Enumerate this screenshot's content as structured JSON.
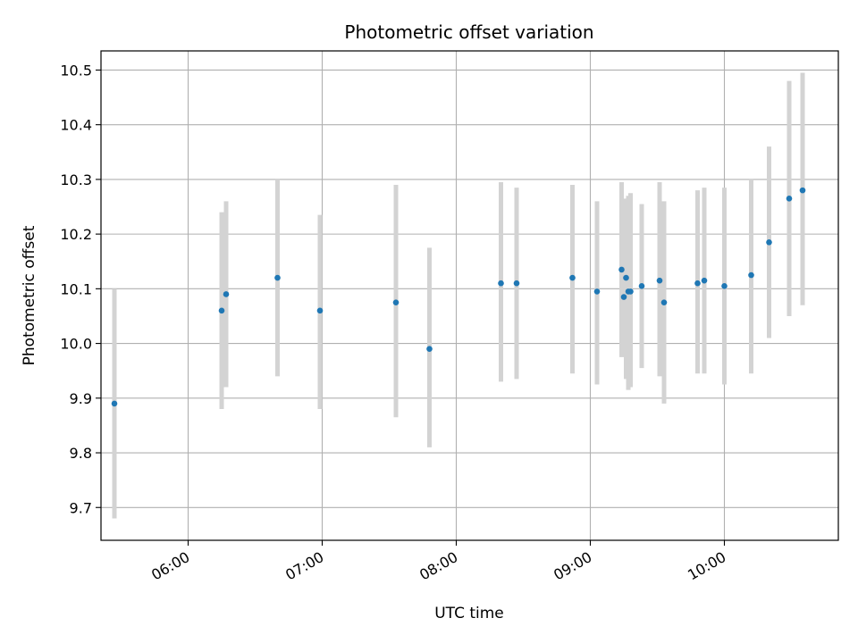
{
  "chart_data": {
    "type": "scatter",
    "title": "Photometric offset variation",
    "xlabel": "UTC time",
    "ylabel": "Photometric offset",
    "x_unit": "UTC hour of day",
    "xlim": [
      "05:21",
      "10:51"
    ],
    "ylim": [
      9.64,
      10.535
    ],
    "x_ticks": [
      "06:00",
      "07:00",
      "08:00",
      "09:00",
      "10:00"
    ],
    "y_ticks": [
      "9.7",
      "9.8",
      "9.9",
      "10.0",
      "10.1",
      "10.2",
      "10.3",
      "10.4",
      "10.5"
    ],
    "grid": true,
    "marker_color": "#1f77b4",
    "errorbar_color": "#d3d3d3",
    "points": [
      {
        "time": "05:27",
        "y": 9.89,
        "err_low": 9.68,
        "err_high": 10.1
      },
      {
        "time": "06:15",
        "y": 10.06,
        "err_low": 9.88,
        "err_high": 10.24
      },
      {
        "time": "06:17",
        "y": 10.09,
        "err_low": 9.92,
        "err_high": 10.26
      },
      {
        "time": "06:40",
        "y": 10.12,
        "err_low": 9.94,
        "err_high": 10.3
      },
      {
        "time": "06:59",
        "y": 10.06,
        "err_low": 9.88,
        "err_high": 10.235
      },
      {
        "time": "07:33",
        "y": 10.075,
        "err_low": 9.865,
        "err_high": 10.29
      },
      {
        "time": "07:48",
        "y": 9.99,
        "err_low": 9.81,
        "err_high": 10.175
      },
      {
        "time": "08:20",
        "y": 10.11,
        "err_low": 9.93,
        "err_high": 10.295
      },
      {
        "time": "08:27",
        "y": 10.11,
        "err_low": 9.935,
        "err_high": 10.285
      },
      {
        "time": "08:52",
        "y": 10.12,
        "err_low": 9.945,
        "err_high": 10.29
      },
      {
        "time": "09:03",
        "y": 10.095,
        "err_low": 9.925,
        "err_high": 10.26
      },
      {
        "time": "09:14",
        "y": 10.135,
        "err_low": 9.975,
        "err_high": 10.295
      },
      {
        "time": "09:15",
        "y": 10.085,
        "err_low": 9.985,
        "err_high": 10.235
      },
      {
        "time": "09:16",
        "y": 10.12,
        "err_low": 9.935,
        "err_high": 10.265
      },
      {
        "time": "09:17",
        "y": 10.095,
        "err_low": 9.915,
        "err_high": 10.27
      },
      {
        "time": "09:18",
        "y": 10.095,
        "err_low": 9.92,
        "err_high": 10.275
      },
      {
        "time": "09:23",
        "y": 10.105,
        "err_low": 9.955,
        "err_high": 10.255
      },
      {
        "time": "09:31",
        "y": 10.115,
        "err_low": 9.94,
        "err_high": 10.295
      },
      {
        "time": "09:33",
        "y": 10.075,
        "err_low": 9.89,
        "err_high": 10.26
      },
      {
        "time": "09:48",
        "y": 10.11,
        "err_low": 9.945,
        "err_high": 10.28
      },
      {
        "time": "09:51",
        "y": 10.115,
        "err_low": 9.945,
        "err_high": 10.285
      },
      {
        "time": "10:00",
        "y": 10.105,
        "err_low": 9.925,
        "err_high": 10.285
      },
      {
        "time": "10:12",
        "y": 10.125,
        "err_low": 9.945,
        "err_high": 10.3
      },
      {
        "time": "10:20",
        "y": 10.185,
        "err_low": 10.01,
        "err_high": 10.36
      },
      {
        "time": "10:29",
        "y": 10.265,
        "err_low": 10.05,
        "err_high": 10.48
      },
      {
        "time": "10:35",
        "y": 10.28,
        "err_low": 10.07,
        "err_high": 10.495
      }
    ]
  }
}
